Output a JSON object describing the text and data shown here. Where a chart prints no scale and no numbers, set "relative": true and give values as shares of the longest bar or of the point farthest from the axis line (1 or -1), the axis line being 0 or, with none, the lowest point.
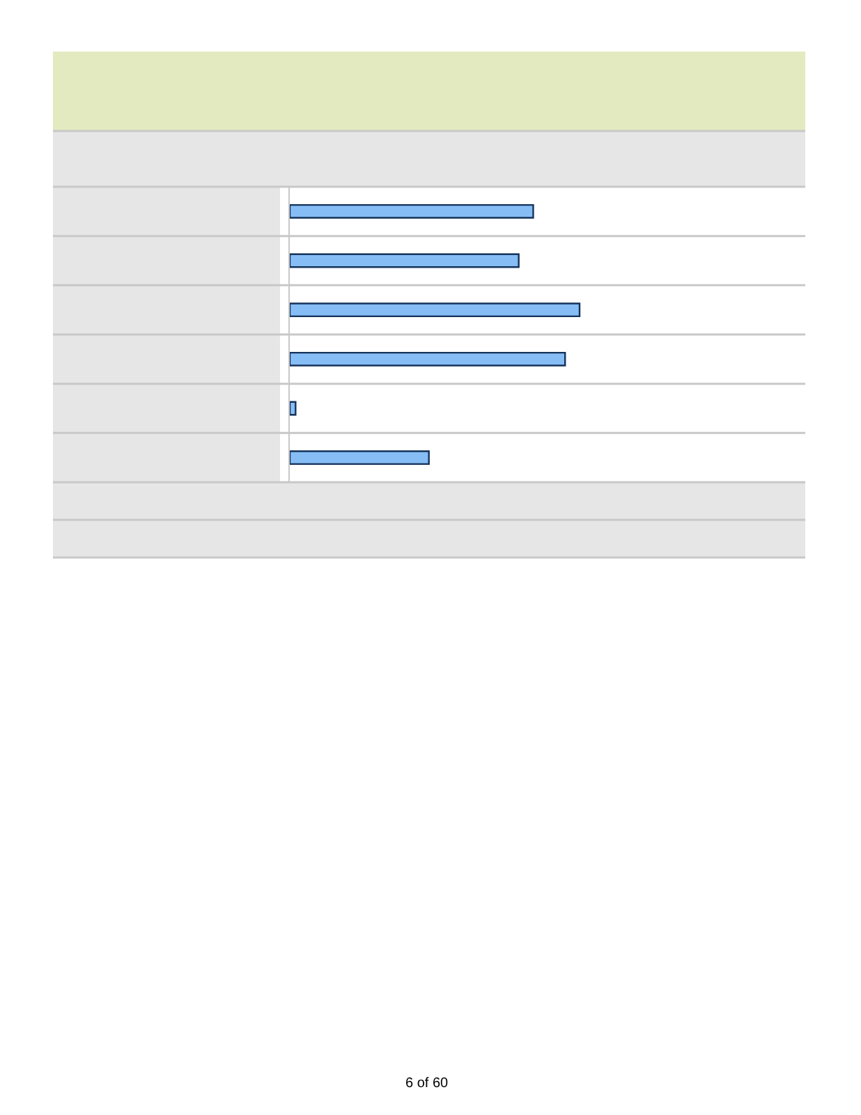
{
  "chart_data": {
    "type": "bar",
    "orientation": "horizontal",
    "relative": true,
    "categories": [
      null,
      null,
      null,
      null,
      null,
      null
    ],
    "values": [
      0.84,
      0.79,
      1,
      0.95,
      0.02,
      0.48
    ],
    "color": "#86bdf5",
    "grid": false,
    "legend": false,
    "annotations": [
      "6 of 60"
    ]
  }
}
